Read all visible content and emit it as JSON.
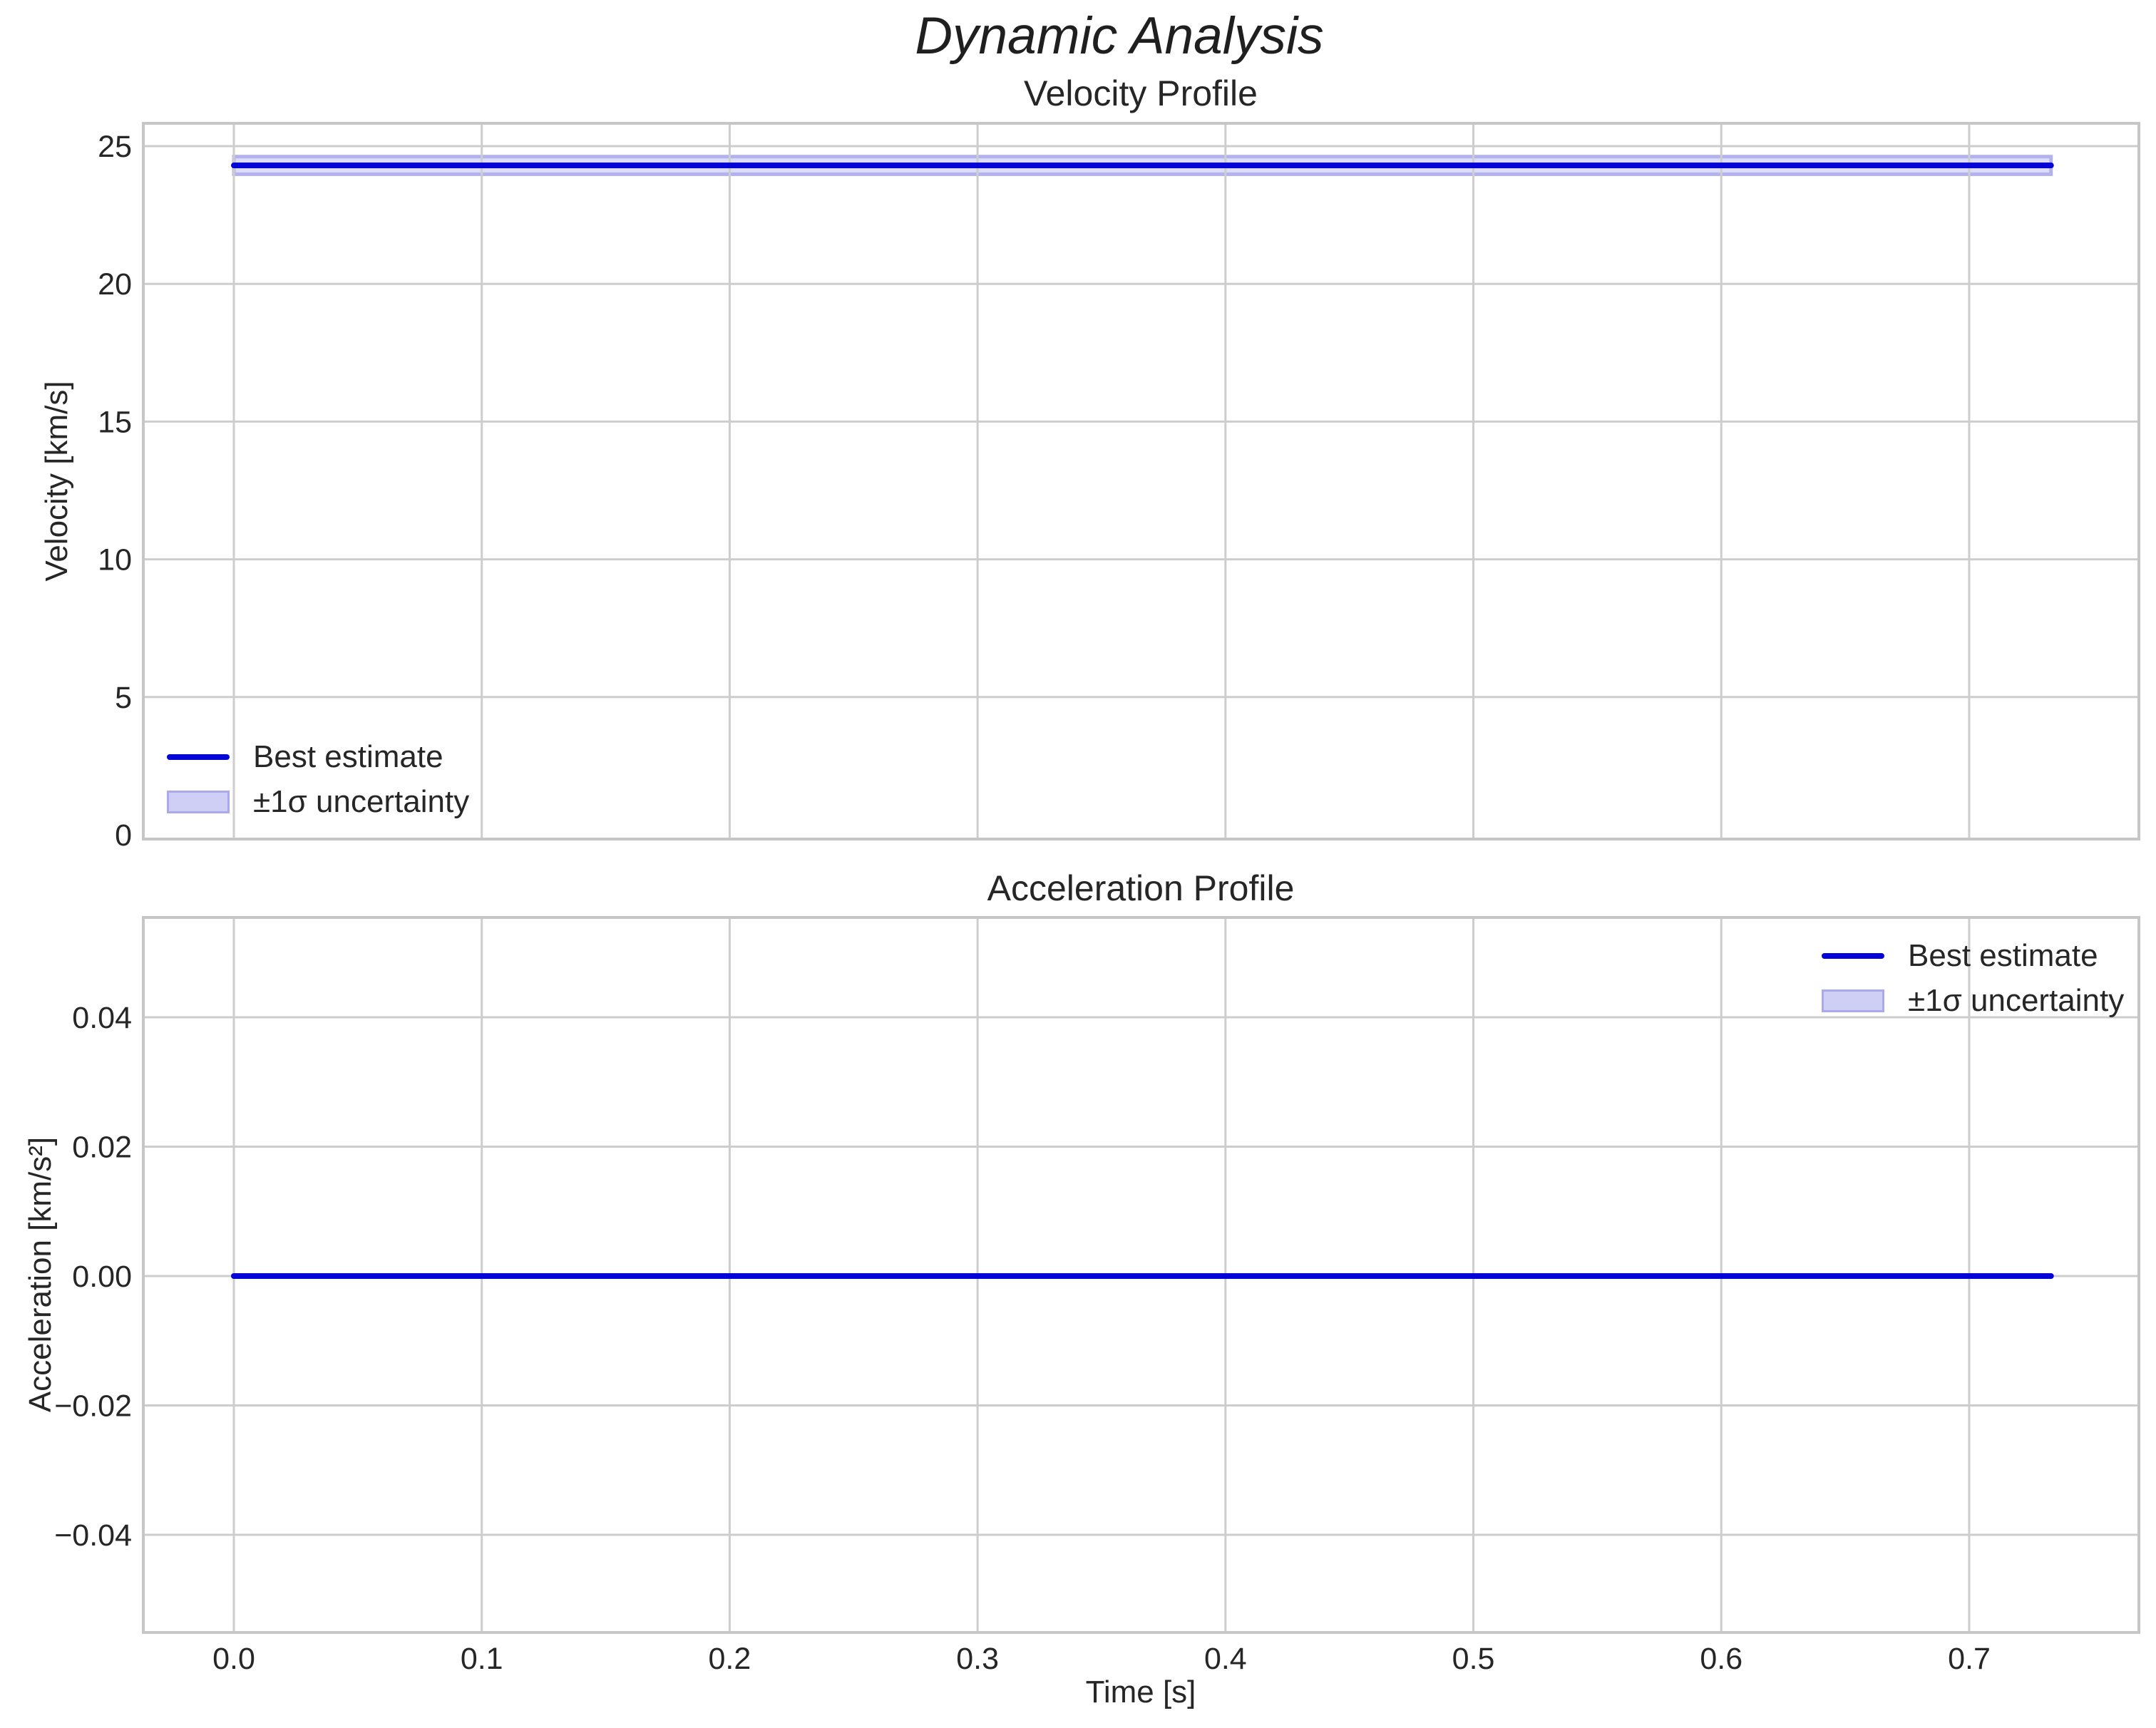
{
  "figure": {
    "suptitle": "Dynamic Analysis",
    "background": "#ffffff",
    "text_color": "#262626",
    "grid_color": "#cdcdcd",
    "spine_color": "#c6c6c6",
    "line_color": "#0404d6",
    "band_fill": "#dcdcf8",
    "band_edge": "#b2b2ef"
  },
  "legend": {
    "entries": [
      {
        "label": "Best estimate",
        "swatch": "line-swatch"
      },
      {
        "label": "±1σ uncertainty",
        "swatch": "band-swatch"
      }
    ]
  },
  "chart_data": [
    {
      "type": "line",
      "title": "Velocity Profile",
      "xlabel": "",
      "ylabel": "Velocity [km/s]",
      "x": [
        0.0,
        0.733
      ],
      "series": [
        {
          "name": "Best estimate",
          "values": [
            24.3,
            24.3
          ]
        }
      ],
      "band": {
        "name": "±1σ uncertainty",
        "lo": 23.98,
        "hi": 24.62
      },
      "xlim": [
        -0.037,
        0.769
      ],
      "ylim": [
        -0.16,
        25.84
      ],
      "xticks": [
        0.0,
        0.1,
        0.2,
        0.3,
        0.4,
        0.5,
        0.6,
        0.7
      ],
      "xtick_labels": [
        "0.0",
        "0.1",
        "0.2",
        "0.3",
        "0.4",
        "0.5",
        "0.6",
        "0.7"
      ],
      "show_xtick_labels": false,
      "yticks": [
        0,
        5,
        10,
        15,
        20,
        25
      ],
      "ytick_labels": [
        "0",
        "5",
        "10",
        "15",
        "20",
        "25"
      ],
      "grid": true,
      "legend_position": "lower-left"
    },
    {
      "type": "line",
      "title": "Acceleration Profile",
      "xlabel": "Time [s]",
      "ylabel": "Acceleration [km/s²]",
      "x": [
        0.0,
        0.733
      ],
      "series": [
        {
          "name": "Best estimate",
          "values": [
            0.0,
            0.0
          ]
        }
      ],
      "band": {
        "name": "±1σ uncertainty",
        "lo": 0.0,
        "hi": 0.0
      },
      "xlim": [
        -0.037,
        0.769
      ],
      "ylim": [
        -0.0551,
        0.0554
      ],
      "xticks": [
        0.0,
        0.1,
        0.2,
        0.3,
        0.4,
        0.5,
        0.6,
        0.7
      ],
      "xtick_labels": [
        "0.0",
        "0.1",
        "0.2",
        "0.3",
        "0.4",
        "0.5",
        "0.6",
        "0.7"
      ],
      "show_xtick_labels": true,
      "yticks": [
        -0.04,
        -0.02,
        0.0,
        0.02,
        0.04
      ],
      "ytick_labels": [
        "−0.04",
        "−0.02",
        "0.00",
        "0.02",
        "0.04"
      ],
      "grid": true,
      "legend_position": "upper-right"
    }
  ]
}
